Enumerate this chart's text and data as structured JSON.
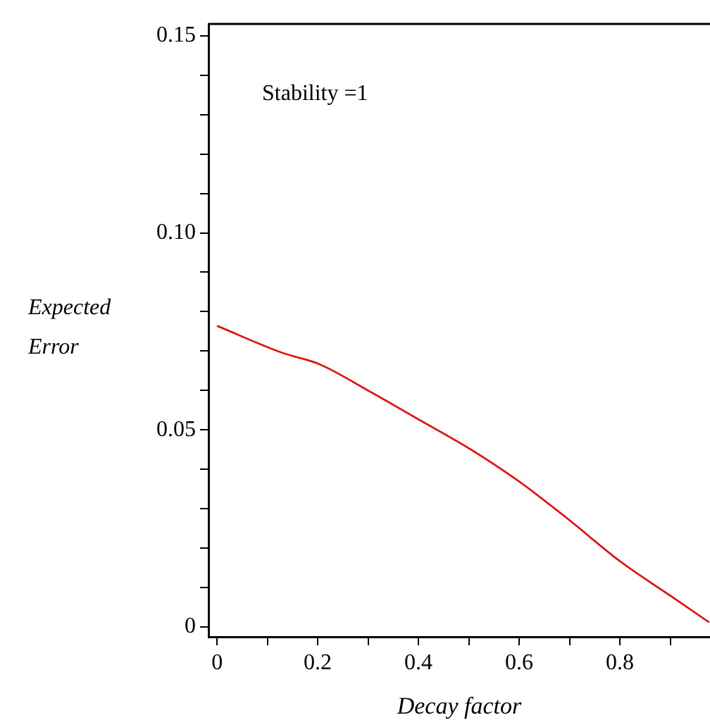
{
  "chart_data": {
    "type": "line",
    "xlabel": "Decay factor",
    "ylabel": "Expected Error",
    "annotations": [
      "Stability =1"
    ],
    "x": [
      0,
      0.129,
      0.203,
      0.3,
      0.404,
      0.502,
      0.6,
      0.697,
      0.8,
      0.903,
      0.977
    ],
    "series": [
      {
        "color": "#ff0000",
        "values": [
          0.0764,
          0.0696,
          0.0667,
          0.06,
          0.0524,
          0.0452,
          0.0369,
          0.0274,
          0.0167,
          0.0077,
          0.0012
        ]
      }
    ],
    "xlim": [
      -0.017,
      0.979
    ],
    "ylim": [
      -0.0025,
      0.153
    ],
    "xticks": [
      0,
      {
        "value": 0.1,
        "label": null
      },
      0.2,
      {
        "value": 0.3,
        "label": null
      },
      0.4,
      {
        "value": 0.5,
        "label": null
      },
      0.6,
      {
        "value": 0.7,
        "label": null
      },
      0.8,
      {
        "value": 0.9,
        "label": null
      }
    ],
    "yticks": [
      0,
      {
        "value": 0.01,
        "label": null
      },
      {
        "value": 0.02,
        "label": null
      },
      {
        "value": 0.03,
        "label": null
      },
      {
        "value": 0.04,
        "label": null
      },
      0.05,
      {
        "value": 0.06,
        "label": null
      },
      {
        "value": 0.07,
        "label": null
      },
      {
        "value": 0.08,
        "label": null
      },
      {
        "value": 0.09,
        "label": null
      },
      {
        "value": 0.1,
        "label": "0.10"
      },
      {
        "value": 0.11,
        "label": null
      },
      {
        "value": 0.12,
        "label": null
      },
      {
        "value": 0.13,
        "label": null
      },
      {
        "value": 0.14,
        "label": null
      },
      0.15
    ],
    "grid": false,
    "legend": false,
    "marker": "none",
    "line_style": "solid"
  }
}
